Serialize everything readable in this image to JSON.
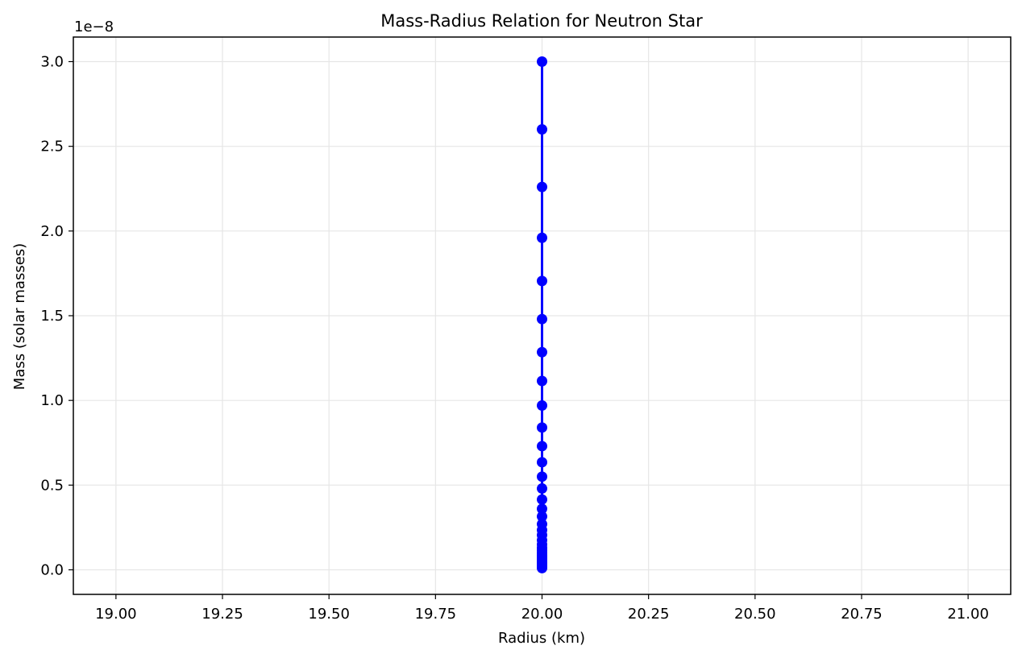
{
  "chart_data": {
    "type": "line",
    "title": "Mass-Radius Relation for Neutron Star",
    "xlabel": "Radius (km)",
    "ylabel": "Mass (solar masses)",
    "y_offset_label": "1e−8",
    "xlim": [
      18.9,
      21.1
    ],
    "ylim": [
      -0.145,
      3.145
    ],
    "y_scale_exponent": -8,
    "x_ticks": [
      19.0,
      19.25,
      19.5,
      19.75,
      20.0,
      20.25,
      20.5,
      20.75,
      21.0
    ],
    "x_tick_labels": [
      "19.00",
      "19.25",
      "19.50",
      "19.75",
      "20.00",
      "20.25",
      "20.50",
      "20.75",
      "21.00"
    ],
    "y_ticks": [
      0.0,
      0.5,
      1.0,
      1.5,
      2.0,
      2.5,
      3.0
    ],
    "y_tick_labels": [
      "0.0",
      "0.5",
      "1.0",
      "1.5",
      "2.0",
      "2.5",
      "3.0"
    ],
    "grid": true,
    "legend": "none",
    "colors": {
      "series": "#0000ff",
      "grid": "#e6e6e6",
      "axes": "#000000"
    },
    "series": [
      {
        "marker": "circle",
        "x": [
          20.0,
          20.0,
          20.0,
          20.0,
          20.0,
          20.0,
          20.0,
          20.0,
          20.0,
          20.0,
          20.0,
          20.0,
          20.0,
          20.0,
          20.0,
          20.0,
          20.0,
          20.0,
          20.0,
          20.0,
          20.0,
          20.0,
          20.0,
          20.0,
          20.0,
          20.0,
          20.0,
          20.0,
          20.0,
          20.0,
          20.0,
          20.0,
          20.0,
          20.0,
          20.0,
          20.0
        ],
        "y": [
          3.0,
          2.6,
          2.26,
          1.96,
          1.705,
          1.48,
          1.285,
          1.115,
          0.97,
          0.84,
          0.73,
          0.635,
          0.55,
          0.48,
          0.415,
          0.36,
          0.315,
          0.27,
          0.235,
          0.205,
          0.175,
          0.15,
          0.13,
          0.115,
          0.1,
          0.085,
          0.075,
          0.065,
          0.055,
          0.045,
          0.04,
          0.035,
          0.025,
          0.02,
          0.015,
          0.01
        ]
      }
    ]
  }
}
